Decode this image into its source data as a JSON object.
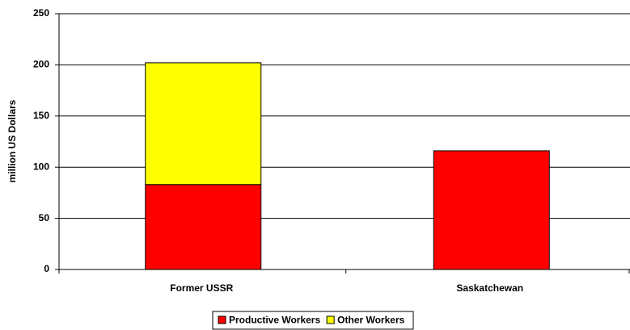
{
  "chart_data": {
    "type": "stacked_bar",
    "y_label": "million US Dollars",
    "categories": [
      "Former USSR",
      "Saskatchewan"
    ],
    "series": [
      {
        "name": "Productive Workers",
        "color": "#ff0000",
        "values": [
          83,
          116
        ]
      },
      {
        "name": "Other Workers",
        "color": "#ffff00",
        "values": [
          119,
          0
        ]
      }
    ],
    "ylim": [
      0,
      250
    ],
    "yticks": [
      0,
      50,
      100,
      150,
      200,
      250
    ],
    "grid": true,
    "legend": "bottom"
  }
}
